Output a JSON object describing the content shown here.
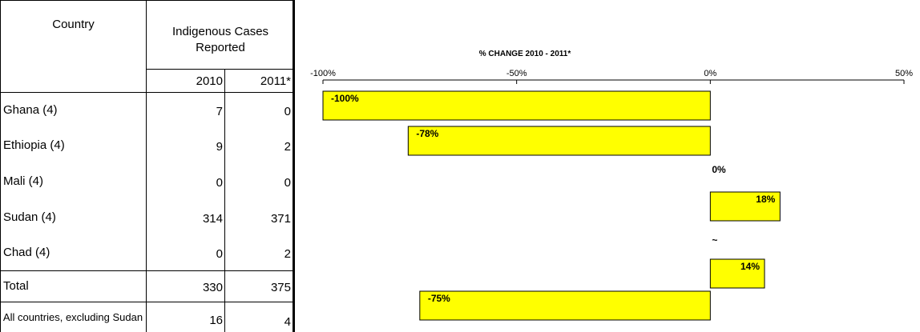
{
  "table": {
    "col_country": "Country",
    "col_cases": "Indigenous Cases Reported",
    "col_2010": "2010",
    "col_2011": "2011*",
    "rows": [
      {
        "country": "Ghana (4)",
        "y2010": "7",
        "y2011": "0"
      },
      {
        "country": "Ethiopia (4)",
        "y2010": "9",
        "y2011": "2"
      },
      {
        "country": "Mali (4)",
        "y2010": "0",
        "y2011": "0"
      },
      {
        "country": "Sudan (4)",
        "y2010": "314",
        "y2011": "371"
      },
      {
        "country": "Chad (4)",
        "y2010": "0",
        "y2011": "2"
      }
    ],
    "total": {
      "country": "Total",
      "y2010": "330",
      "y2011": "375"
    },
    "excl": {
      "country": "All countries, excluding Sudan",
      "y2010": "16",
      "y2011": "4"
    }
  },
  "chart_data": {
    "type": "bar",
    "orientation": "horizontal",
    "title": "% CHANGE 2010 - 2011*",
    "xlim": [
      -100,
      50
    ],
    "ticks": [
      -100,
      -50,
      0,
      50
    ],
    "tick_labels": [
      "-100%",
      "-50%",
      "0%",
      "50%"
    ],
    "categories": [
      "Ghana (4)",
      "Ethiopia (4)",
      "Mali (4)",
      "Sudan (4)",
      "Chad (4)",
      "Total",
      "All countries, excluding Sudan"
    ],
    "values": [
      -100,
      -78,
      0,
      18,
      null,
      14,
      -75
    ],
    "labels": [
      "-100%",
      "-78%",
      "0%",
      "18%",
      "~",
      "14%",
      "-75%"
    ],
    "bar_color": "#ffff00",
    "grid": false
  }
}
